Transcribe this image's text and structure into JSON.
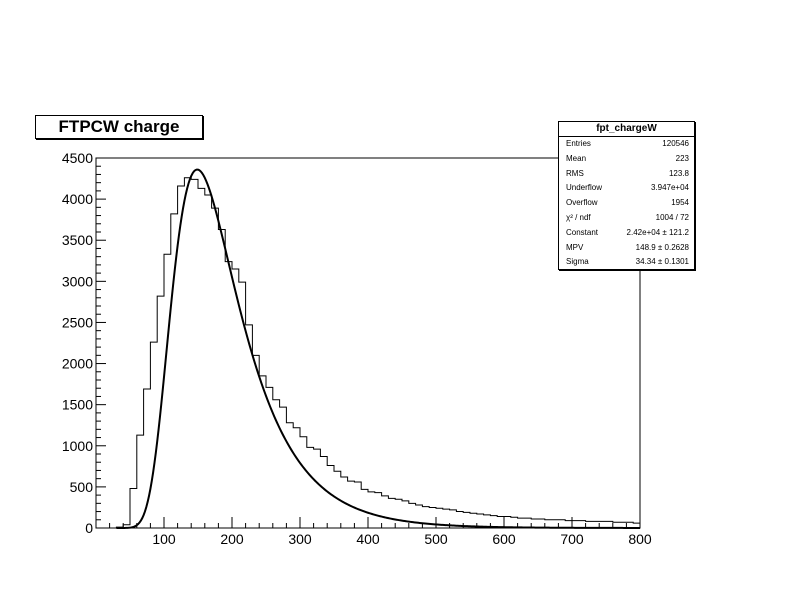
{
  "chart_data": {
    "type": "histogram",
    "title": "FTPCW charge",
    "xlabel": "",
    "ylabel": "",
    "xlim": [
      0,
      800
    ],
    "ylim": [
      0,
      4500
    ],
    "grid": false,
    "x_ticks": [
      "100",
      "200",
      "300",
      "400",
      "500",
      "600",
      "700",
      "800"
    ],
    "y_ticks": [
      "0",
      "500",
      "1000",
      "1500",
      "2000",
      "2500",
      "3000",
      "3500",
      "4000",
      "4500"
    ],
    "bin_width": 10,
    "bin_start": 0,
    "counts": [
      0,
      0,
      0,
      10,
      40,
      480,
      1130,
      1690,
      2260,
      2820,
      3330,
      3820,
      4160,
      4260,
      4240,
      4130,
      4050,
      3890,
      3630,
      3240,
      3150,
      2990,
      2470,
      2100,
      1850,
      1710,
      1560,
      1470,
      1280,
      1220,
      1110,
      980,
      960,
      870,
      760,
      690,
      620,
      570,
      560,
      470,
      440,
      430,
      390,
      360,
      350,
      330,
      300,
      280,
      260,
      250,
      240,
      230,
      220,
      200,
      190,
      180,
      170,
      160,
      150,
      140,
      140,
      130,
      120,
      120,
      110,
      110,
      100,
      100,
      100,
      90,
      90,
      90,
      80,
      80,
      80,
      80,
      70,
      70,
      70,
      60
    ],
    "fit": {
      "function": "landau",
      "constant": 24200,
      "mpv": 148.9,
      "sigma": 34.34,
      "x_range": [
        30,
        800
      ]
    },
    "stats": {
      "name": "fpt_chargeW",
      "rows": [
        {
          "label": "Entries",
          "value": "120546"
        },
        {
          "label": "Mean",
          "value": "223"
        },
        {
          "label": "RMS",
          "value": "123.8"
        },
        {
          "label": "Underflow",
          "value": "3.947e+04"
        },
        {
          "label": "Overflow",
          "value": "1954"
        },
        {
          "label": "χ² / ndf",
          "value": "1004 / 72"
        },
        {
          "label": "Constant",
          "value": "2.42e+04 ± 121.2"
        },
        {
          "label": "MPV",
          "value": "148.9 ± 0.2628"
        },
        {
          "label": "Sigma",
          "value": "34.34 ± 0.1301"
        }
      ]
    }
  }
}
